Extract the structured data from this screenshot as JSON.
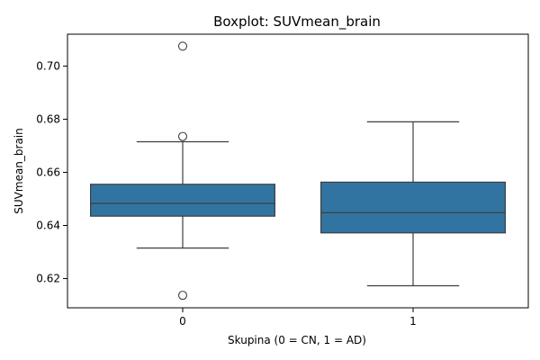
{
  "chart_data": {
    "type": "boxplot",
    "title": "Boxplot: SUVmean_brain",
    "xlabel": "Skupina (0 = CN, 1 = AD)",
    "ylabel": "SUVmean_brain",
    "categories": [
      "0",
      "1"
    ],
    "ylim": [
      0.609,
      0.712
    ],
    "yticks": [
      0.62,
      0.64,
      0.66,
      0.68,
      0.7
    ],
    "ytick_labels": [
      "0.62",
      "0.64",
      "0.66",
      "0.68",
      "0.70"
    ],
    "box_color": "#3274a1",
    "line_color": "#3f3f3f",
    "grid": false,
    "boxes": [
      {
        "category": "0",
        "whisker_low": 0.6315,
        "q1": 0.6435,
        "median": 0.6483,
        "q3": 0.6555,
        "whisker_high": 0.6715,
        "outliers": [
          0.7075,
          0.6735,
          0.6137
        ]
      },
      {
        "category": "1",
        "whisker_low": 0.6173,
        "q1": 0.6372,
        "median": 0.6448,
        "q3": 0.6563,
        "whisker_high": 0.679,
        "outliers": []
      }
    ]
  }
}
